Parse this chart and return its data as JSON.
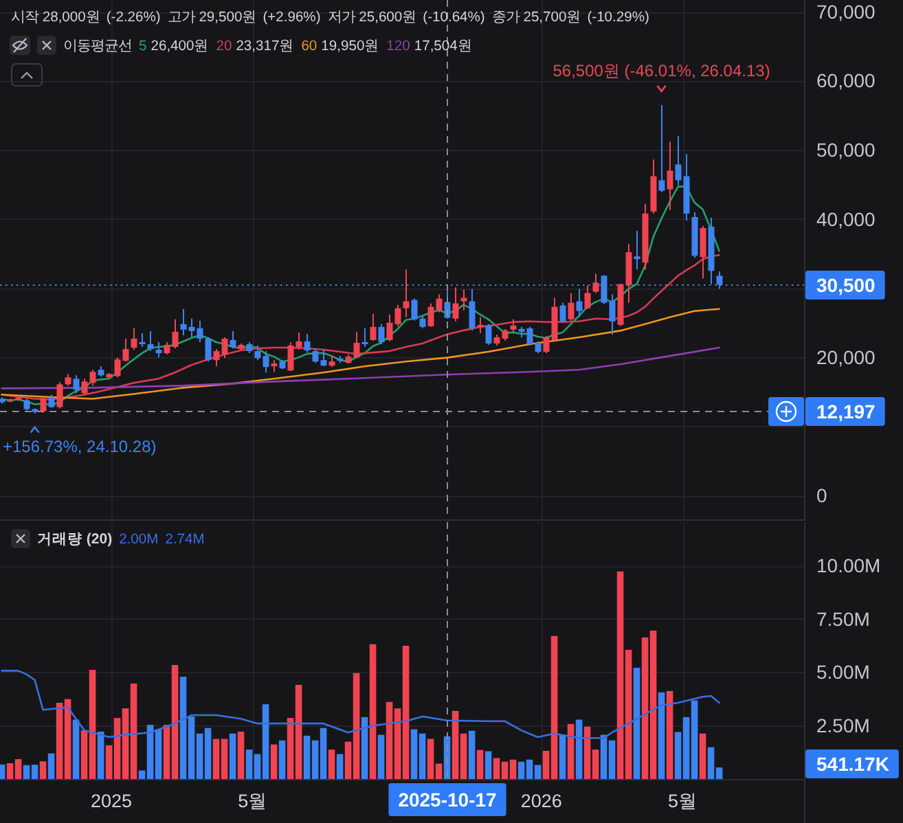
{
  "chart_data": [
    {
      "type": "candlestick",
      "x": [
        "2024-09-30",
        "2024-10-07",
        "2024-10-14",
        "2024-10-21",
        "2024-10-28",
        "2024-11-04",
        "2024-11-11",
        "2024-11-18",
        "2024-11-25",
        "2024-12-02",
        "2024-12-09",
        "2024-12-16",
        "2024-12-23",
        "2024-12-30",
        "2025-01-06",
        "2025-01-13",
        "2025-01-20",
        "2025-01-27",
        "2025-02-03",
        "2025-02-10",
        "2025-02-17",
        "2025-02-24",
        "2025-03-03",
        "2025-03-10",
        "2025-03-17",
        "2025-03-24",
        "2025-03-31",
        "2025-04-07",
        "2025-04-14",
        "2025-04-21",
        "2025-04-28",
        "2025-05-05",
        "2025-05-12",
        "2025-05-19",
        "2025-05-26",
        "2025-06-02",
        "2025-06-09",
        "2025-06-16",
        "2025-06-23",
        "2025-06-30",
        "2025-07-07",
        "2025-07-14",
        "2025-07-21",
        "2025-07-28",
        "2025-08-04",
        "2025-08-11",
        "2025-08-18",
        "2025-08-25",
        "2025-09-01",
        "2025-09-08",
        "2025-09-15",
        "2025-09-22",
        "2025-09-29",
        "2025-10-06",
        "2025-10-13",
        "2025-10-20",
        "2025-10-27",
        "2025-11-03",
        "2025-11-10",
        "2025-11-17",
        "2025-11-24",
        "2025-12-01",
        "2025-12-08",
        "2025-12-15",
        "2025-12-22",
        "2025-12-29",
        "2026-01-05",
        "2026-01-12",
        "2026-01-19",
        "2026-01-26",
        "2026-02-02",
        "2026-02-09",
        "2026-02-16",
        "2026-02-23",
        "2026-03-02",
        "2026-03-09",
        "2026-03-16",
        "2026-03-23",
        "2026-03-30",
        "2026-04-06",
        "2026-04-13",
        "2026-04-20",
        "2026-04-27",
        "2026-05-04",
        "2026-05-11",
        "2026-05-18",
        "2026-05-25",
        "2026-06-01"
      ],
      "ohlc": [
        [
          14000,
          14200,
          13300,
          13500
        ],
        [
          13600,
          14000,
          13500,
          13800
        ],
        [
          13800,
          14400,
          13700,
          14200
        ],
        [
          13800,
          14000,
          12300,
          12500
        ],
        [
          12500,
          12600,
          11880,
          12100
        ],
        [
          12200,
          14300,
          12000,
          14100
        ],
        [
          14200,
          14600,
          12700,
          12800
        ],
        [
          12800,
          16400,
          12600,
          16100
        ],
        [
          16100,
          17600,
          15900,
          17100
        ],
        [
          16900,
          17400,
          14800,
          15300
        ],
        [
          14800,
          16900,
          14500,
          16500
        ],
        [
          16300,
          18200,
          15900,
          17900
        ],
        [
          18200,
          18700,
          17200,
          17400
        ],
        [
          17100,
          17700,
          17000,
          17600
        ],
        [
          17300,
          20000,
          17100,
          19700
        ],
        [
          19500,
          22700,
          19400,
          21200
        ],
        [
          21400,
          24200,
          21100,
          22700
        ],
        [
          22200,
          23500,
          21500,
          21900
        ],
        [
          21900,
          23800,
          20900,
          21200
        ],
        [
          21100,
          22200,
          20000,
          20600
        ],
        [
          20600,
          22200,
          20400,
          21800
        ],
        [
          21500,
          25500,
          21300,
          23700
        ],
        [
          24800,
          27000,
          23200,
          24000
        ],
        [
          24400,
          25600,
          22900,
          23800
        ],
        [
          24200,
          25300,
          22200,
          22700
        ],
        [
          22700,
          22900,
          19400,
          19600
        ],
        [
          19600,
          21200,
          18700,
          20900
        ],
        [
          20400,
          22900,
          19900,
          22700
        ],
        [
          22500,
          23800,
          21300,
          21500
        ],
        [
          21200,
          22000,
          21100,
          21800
        ],
        [
          21900,
          22200,
          20600,
          20900
        ],
        [
          20900,
          21700,
          19600,
          19900
        ],
        [
          20200,
          20900,
          17800,
          18600
        ],
        [
          18700,
          19600,
          17900,
          19100
        ],
        [
          19400,
          19600,
          18300,
          18400
        ],
        [
          18100,
          22200,
          18000,
          21700
        ],
        [
          21500,
          23600,
          21100,
          22300
        ],
        [
          22300,
          23400,
          20700,
          21000
        ],
        [
          20900,
          21300,
          19200,
          19400
        ],
        [
          19600,
          21200,
          18700,
          18800
        ],
        [
          18800,
          20200,
          18600,
          19400
        ],
        [
          19800,
          20200,
          19200,
          19500
        ],
        [
          19200,
          20400,
          19100,
          20100
        ],
        [
          20000,
          23700,
          19900,
          22100
        ],
        [
          22200,
          24200,
          21500,
          21900
        ],
        [
          22500,
          26300,
          22400,
          24400
        ],
        [
          24400,
          24800,
          21900,
          22200
        ],
        [
          22500,
          26200,
          22300,
          25000
        ],
        [
          24800,
          27600,
          24500,
          27100
        ],
        [
          27100,
          32700,
          25800,
          28100
        ],
        [
          28300,
          28500,
          25300,
          25500
        ],
        [
          25600,
          26100,
          24200,
          24400
        ],
        [
          24500,
          27800,
          24400,
          27300
        ],
        [
          26800,
          29100,
          26500,
          28500
        ],
        [
          28000,
          29500,
          25600,
          25700
        ],
        [
          25600,
          30100,
          25200,
          27800
        ],
        [
          28100,
          29800,
          26800,
          28600
        ],
        [
          28100,
          29900,
          23900,
          24200
        ],
        [
          24400,
          25800,
          23500,
          24700
        ],
        [
          24600,
          24800,
          21800,
          22000
        ],
        [
          22000,
          23300,
          21700,
          22900
        ],
        [
          22700,
          24100,
          22400,
          23900
        ],
        [
          24000,
          25500,
          23700,
          24600
        ],
        [
          24100,
          24400,
          22900,
          23700
        ],
        [
          24200,
          24400,
          21700,
          21900
        ],
        [
          22100,
          22300,
          20600,
          20800
        ],
        [
          20800,
          23100,
          20600,
          22900
        ],
        [
          22500,
          28600,
          22400,
          27300
        ],
        [
          27500,
          27900,
          25000,
          25200
        ],
        [
          25500,
          29300,
          25300,
          27900
        ],
        [
          28100,
          29900,
          25800,
          26700
        ],
        [
          27100,
          30400,
          27000,
          29300
        ],
        [
          29500,
          32100,
          29300,
          30800
        ],
        [
          31800,
          31900,
          27700,
          27900
        ],
        [
          28100,
          29100,
          23300,
          25200
        ],
        [
          24700,
          30600,
          24500,
          30600
        ],
        [
          30400,
          36400,
          27900,
          35200
        ],
        [
          34600,
          38300,
          32700,
          34200
        ],
        [
          33700,
          42200,
          32700,
          40800
        ],
        [
          41100,
          48600,
          40800,
          46200
        ],
        [
          45600,
          56500,
          43900,
          44100
        ],
        [
          44300,
          51200,
          41300,
          47000
        ],
        [
          47900,
          52000,
          44900,
          45600
        ],
        [
          46200,
          49400,
          39800,
          40800
        ],
        [
          40300,
          41000,
          34400,
          34700
        ],
        [
          34500,
          39000,
          31400,
          38700
        ],
        [
          38900,
          40200,
          30600,
          32500
        ],
        [
          31800,
          32400,
          29900,
          30500
        ]
      ],
      "colors": [
        "#3d84f0",
        "#f04452",
        "#f04452",
        "#3d84f0",
        "#3d84f0",
        "#f04452",
        "#3d84f0",
        "#f04452",
        "#f04452",
        "#3d84f0",
        "#f04452",
        "#f04452",
        "#3d84f0",
        "#f04452",
        "#f04452",
        "#f04452",
        "#f04452",
        "#3d84f0",
        "#3d84f0",
        "#3d84f0",
        "#f04452",
        "#f04452",
        "#3d84f0",
        "#3d84f0",
        "#3d84f0",
        "#3d84f0",
        "#f04452",
        "#f04452",
        "#3d84f0",
        "#f04452",
        "#3d84f0",
        "#3d84f0",
        "#3d84f0",
        "#f04452",
        "#3d84f0",
        "#f04452",
        "#f04452",
        "#3d84f0",
        "#3d84f0",
        "#3d84f0",
        "#f04452",
        "#3d84f0",
        "#f04452",
        "#f04452",
        "#3d84f0",
        "#f04452",
        "#3d84f0",
        "#f04452",
        "#f04452",
        "#f04452",
        "#3d84f0",
        "#3d84f0",
        "#f04452",
        "#f04452",
        "#3d84f0",
        "#f04452",
        "#f04452",
        "#3d84f0",
        "#f04452",
        "#3d84f0",
        "#f04452",
        "#f04452",
        "#f04452",
        "#3d84f0",
        "#3d84f0",
        "#3d84f0",
        "#f04452",
        "#f04452",
        "#3d84f0",
        "#f04452",
        "#3d84f0",
        "#f04452",
        "#f04452",
        "#3d84f0",
        "#3d84f0",
        "#f04452",
        "#f04452",
        "#3d84f0",
        "#f04452",
        "#f04452",
        "#3d84f0",
        "#f04452",
        "#3d84f0",
        "#3d84f0",
        "#3d84f0",
        "#f04452",
        "#3d84f0",
        "#3d84f0"
      ],
      "series": [
        {
          "name": "5",
          "type": "line",
          "color": "#22a06b",
          "values": [
            13900,
            13800,
            13900,
            13600,
            13200,
            13300,
            13100,
            13500,
            14400,
            15100,
            15600,
            16600,
            16800,
            16900,
            17800,
            18800,
            19700,
            20600,
            21300,
            21500,
            21600,
            21800,
            22300,
            22800,
            23200,
            22800,
            22200,
            21900,
            21500,
            21300,
            21600,
            21400,
            20500,
            20100,
            19400,
            19600,
            20000,
            20500,
            20600,
            20600,
            20200,
            19600,
            19400,
            20000,
            20600,
            21600,
            22100,
            23100,
            24100,
            25400,
            25600,
            26000,
            26500,
            26800,
            26400,
            26700,
            27600,
            27000,
            26200,
            25500,
            24500,
            23500,
            23600,
            23400,
            23400,
            23000,
            22800,
            23300,
            23600,
            24800,
            26000,
            27300,
            28000,
            28500,
            28000,
            28800,
            29900,
            30600,
            33200,
            37400,
            40100,
            42500,
            44700,
            44700,
            42400,
            41400,
            38500,
            35400
          ]
        },
        {
          "name": "20",
          "type": "line",
          "color": "#d83a52",
          "x": [
            "2024-09-30",
            "2024-10-14",
            "2024-10-28",
            "2024-11-11",
            "2024-11-25",
            "2024-12-09",
            "2024-12-23",
            "2025-01-06",
            "2025-01-20",
            "2025-02-03",
            "2025-02-10",
            "2025-02-24",
            "2025-03-10",
            "2025-03-24",
            "2025-04-07",
            "2025-04-21",
            "2025-05-05",
            "2025-05-19",
            "2025-06-02",
            "2025-06-16",
            "2025-06-30",
            "2025-07-14",
            "2025-07-28",
            "2025-08-11",
            "2025-08-25",
            "2025-09-08",
            "2025-09-22",
            "2025-10-06",
            "2025-10-13",
            "2025-10-27",
            "2025-11-10",
            "2025-11-24",
            "2025-12-08",
            "2025-12-22",
            "2026-01-05",
            "2026-01-19",
            "2026-02-02",
            "2026-02-16",
            "2026-03-02",
            "2026-03-09",
            "2026-03-16",
            "2026-03-23",
            "2026-03-30",
            "2026-04-06",
            "2026-04-13",
            "2026-04-20",
            "2026-04-27",
            "2026-05-04",
            "2026-05-11",
            "2026-05-18",
            "2026-05-25",
            "2026-06-01"
          ],
          "values": [
            14600,
            14300,
            14000,
            13900,
            14200,
            14600,
            15100,
            15700,
            16300,
            16700,
            16900,
            17800,
            18900,
            19700,
            20400,
            21000,
            21300,
            21400,
            21400,
            21300,
            21100,
            20800,
            20500,
            20700,
            20900,
            21500,
            22000,
            22900,
            23317,
            23900,
            24400,
            24700,
            25100,
            25200,
            25100,
            25100,
            25200,
            25600,
            25500,
            25700,
            26000,
            26500,
            27300,
            28500,
            29600,
            30700,
            31800,
            32600,
            33300,
            34200,
            34600,
            34800
          ]
        },
        {
          "name": "60",
          "type": "line",
          "color": "#f0951f",
          "x": [
            "2024-09-30",
            "2024-11-04",
            "2024-12-16",
            "2025-01-20",
            "2025-03-03",
            "2025-04-14",
            "2025-05-19",
            "2025-06-30",
            "2025-08-04",
            "2025-09-08",
            "2025-10-13",
            "2025-11-17",
            "2025-12-22",
            "2026-02-02",
            "2026-03-09",
            "2026-03-30",
            "2026-04-20",
            "2026-05-11",
            "2026-06-01"
          ],
          "values": [
            14600,
            14300,
            14000,
            14700,
            15600,
            16200,
            16900,
            17800,
            18700,
            19400,
            19950,
            20800,
            21900,
            22900,
            23850,
            24800,
            25800,
            26700,
            27000
          ]
        },
        {
          "name": "120",
          "type": "line",
          "color": "#8e3fb0",
          "x": [
            "2024-09-30",
            "2024-12-16",
            "2025-03-03",
            "2025-05-19",
            "2025-08-04",
            "2025-10-13",
            "2025-12-22",
            "2026-02-02",
            "2026-03-09",
            "2026-04-20",
            "2026-06-01"
          ],
          "values": [
            15500,
            15600,
            15900,
            16500,
            17000,
            17504,
            17900,
            18200,
            19000,
            20200,
            21400
          ]
        }
      ],
      "xlim": [
        "2024-09-28T12:00",
        "2026-08-12"
      ],
      "xticks": [
        {
          "value": "2025",
          "label": null
        },
        {
          "value": "2025-05",
          "label": null
        },
        {
          "value": "2026",
          "label": null
        },
        {
          "value": "2026-05",
          "label": null
        }
      ],
      "ylim": [
        -3440,
        71690
      ],
      "yticks": [
        0,
        {
          "value": 10000,
          "label": null
        },
        {
          "value": 20000,
          "label": "20,000"
        },
        {
          "value": 30000,
          "label": null
        },
        {
          "value": 40000,
          "label": "40,000"
        },
        {
          "value": 50000,
          "label": "50,000"
        },
        {
          "value": 60000,
          "label": "60,000"
        },
        {
          "value": 70000,
          "label": "70,000"
        }
      ],
      "tick_labels": "y",
      "grid": true,
      "legend": "top left",
      "legend_title": "이동평균선",
      "annotations": [
        "시작 28,000원",
        "(-2.26%)",
        "고가 29,500원",
        "(+2.96%)",
        "저가 25,600원",
        "(-10.64%)",
        "종가 25,700원",
        "(-10.29%)",
        "30,500",
        "12,197",
        "26,400원",
        "23,317원",
        "19,950원",
        "17,504원",
        {
          "text": "56,500원 (-46.01%, 26.04.13)",
          "x": "2026-04-13",
          "y": 56500
        },
        {
          "text": "+156.73%, 24.10.28)",
          "x": "2024-10-28",
          "y": 11880
        }
      ],
      "ref_lines": [
        {
          "axis": "y",
          "value": 30500,
          "color": "#3d84f0",
          "line_style": "dotted"
        },
        {
          "axis": "y",
          "value": 12197,
          "color": "#8a8d96",
          "line_style": "dashed"
        },
        {
          "axis": "x",
          "value": "2025-10-13",
          "color": "#8a8d96",
          "line_style": "dashed"
        }
      ]
    },
    {
      "type": "bar",
      "title": "거래량 (20)",
      "x": [
        "2024-09-30",
        "2024-10-07",
        "2024-10-14",
        "2024-10-21",
        "2024-10-28",
        "2024-11-04",
        "2024-11-11",
        "2024-11-18",
        "2024-11-25",
        "2024-12-02",
        "2024-12-09",
        "2024-12-16",
        "2024-12-23",
        "2024-12-30",
        "2025-01-06",
        "2025-01-13",
        "2025-01-20",
        "2025-01-27",
        "2025-02-03",
        "2025-02-10",
        "2025-02-17",
        "2025-02-24",
        "2025-03-03",
        "2025-03-10",
        "2025-03-17",
        "2025-03-24",
        "2025-03-31",
        "2025-04-07",
        "2025-04-14",
        "2025-04-21",
        "2025-04-28",
        "2025-05-05",
        "2025-05-12",
        "2025-05-19",
        "2025-05-26",
        "2025-06-02",
        "2025-06-09",
        "2025-06-16",
        "2025-06-23",
        "2025-06-30",
        "2025-07-07",
        "2025-07-14",
        "2025-07-21",
        "2025-07-28",
        "2025-08-04",
        "2025-08-11",
        "2025-08-18",
        "2025-08-25",
        "2025-09-01",
        "2025-09-08",
        "2025-09-15",
        "2025-09-22",
        "2025-09-29",
        "2025-10-06",
        "2025-10-13",
        "2025-10-20",
        "2025-10-27",
        "2025-11-03",
        "2025-11-10",
        "2025-11-17",
        "2025-11-24",
        "2025-12-01",
        "2025-12-08",
        "2025-12-15",
        "2025-12-22",
        "2025-12-29",
        "2026-01-05",
        "2026-01-12",
        "2026-01-19",
        "2026-01-26",
        "2026-02-02",
        "2026-02-09",
        "2026-02-16",
        "2026-02-23",
        "2026-03-02",
        "2026-03-09",
        "2026-03-16",
        "2026-03-23",
        "2026-03-30",
        "2026-04-06",
        "2026-04-13",
        "2026-04-20",
        "2026-04-27",
        "2026-05-04",
        "2026-05-11",
        "2026-05-18",
        "2026-05-25",
        "2026-06-01"
      ],
      "series": [
        {
          "type": "bar",
          "values": [
            0.68,
            0.74,
            0.93,
            0.65,
            0.67,
            0.83,
            1.2,
            3.57,
            3.74,
            2.78,
            2.28,
            5.11,
            2.22,
            1.58,
            2.86,
            3.31,
            4.47,
            0.4,
            2.54,
            2.33,
            2.54,
            5.34,
            4.79,
            2.93,
            2.13,
            2.39,
            1.88,
            1.88,
            2.13,
            2.22,
            1.38,
            1.17,
            3.5,
            1.62,
            1.81,
            2.86,
            4.41,
            2.03,
            1.81,
            2.39,
            1.38,
            1.17,
            1.75,
            4.96,
            2.9,
            6.31,
            2.07,
            3.61,
            3.31,
            6.24,
            2.33,
            2.13,
            1.88,
            0.72,
            2.0,
            3.19,
            2.13,
            2.26,
            1.36,
            1.3,
            0.98,
            0.81,
            0.91,
            0.81,
            0.91,
            0.66,
            1.32,
            6.7,
            2.07,
            2.58,
            2.78,
            2.45,
            1.38,
            2.07,
            1.81,
            9.72,
            6.05,
            5.21,
            6.63,
            6.95,
            4.06,
            4.12,
            2.2,
            2.9,
            3.68,
            2.13,
            1.49,
            0.54117
          ],
          "colors": [
            "#3d84f0",
            "#f04452",
            "#f04452",
            "#3d84f0",
            "#3d84f0",
            "#f04452",
            "#3d84f0",
            "#f04452",
            "#f04452",
            "#3d84f0",
            "#f04452",
            "#f04452",
            "#3d84f0",
            "#f04452",
            "#f04452",
            "#f04452",
            "#f04452",
            "#3d84f0",
            "#3d84f0",
            "#3d84f0",
            "#f04452",
            "#f04452",
            "#3d84f0",
            "#3d84f0",
            "#3d84f0",
            "#3d84f0",
            "#f04452",
            "#f04452",
            "#3d84f0",
            "#f04452",
            "#3d84f0",
            "#3d84f0",
            "#3d84f0",
            "#f04452",
            "#3d84f0",
            "#f04452",
            "#f04452",
            "#3d84f0",
            "#3d84f0",
            "#3d84f0",
            "#f04452",
            "#3d84f0",
            "#f04452",
            "#f04452",
            "#3d84f0",
            "#f04452",
            "#3d84f0",
            "#f04452",
            "#f04452",
            "#f04452",
            "#3d84f0",
            "#3d84f0",
            "#f04452",
            "#f04452",
            "#3d84f0",
            "#f04452",
            "#f04452",
            "#3d84f0",
            "#f04452",
            "#3d84f0",
            "#f04452",
            "#f04452",
            "#f04452",
            "#3d84f0",
            "#3d84f0",
            "#3d84f0",
            "#f04452",
            "#f04452",
            "#3d84f0",
            "#f04452",
            "#3d84f0",
            "#f04452",
            "#f04452",
            "#3d84f0",
            "#3d84f0",
            "#f04452",
            "#f04452",
            "#3d84f0",
            "#f04452",
            "#f04452",
            "#3d84f0",
            "#f04452",
            "#3d84f0",
            "#3d84f0",
            "#3d84f0",
            "#f04452",
            "#3d84f0",
            "#3d84f0"
          ]
        },
        {
          "type": "line",
          "color": "#3a6fe0",
          "x": [
            "2024-09-30",
            "2024-10-14",
            "2024-10-21",
            "2024-10-28",
            "2024-11-04",
            "2024-11-25",
            "2024-12-09",
            "2024-12-30",
            "2025-01-13",
            "2025-02-03",
            "2025-02-24",
            "2025-03-10",
            "2025-03-31",
            "2025-04-21",
            "2025-05-05",
            "2025-06-30",
            "2025-07-21",
            "2025-08-11",
            "2025-09-08",
            "2025-09-22",
            "2025-10-13",
            "2025-11-17",
            "2025-12-01",
            "2025-12-15",
            "2025-12-29",
            "2026-01-12",
            "2026-02-02",
            "2026-02-23",
            "2026-03-02",
            "2026-03-16",
            "2026-04-13",
            "2026-04-27",
            "2026-05-18",
            "2026-05-25",
            "2026-06-01"
          ],
          "values": [
            5.07,
            5.07,
            4.9,
            4.64,
            3.24,
            3.36,
            2.28,
            1.96,
            2.07,
            2.18,
            2.6,
            2.99,
            2.99,
            2.82,
            2.6,
            2.6,
            2.18,
            2.5,
            2.71,
            2.93,
            2.74,
            2.71,
            2.71,
            2.28,
            1.96,
            2.13,
            1.92,
            1.92,
            2.18,
            2.6,
            3.46,
            3.57,
            3.85,
            3.89,
            3.57
          ]
        }
      ],
      "xlim": [
        "2024-09-28T12:00",
        "2026-08-12"
      ],
      "xticks": [
        {
          "value": "2025",
          "label": "2025"
        },
        {
          "value": "2025-05",
          "label": "5월"
        },
        {
          "value": "2026",
          "label": "2026"
        },
        {
          "value": "2026-05",
          "label": "5월"
        }
      ],
      "ylim": [
        0,
        12.03
      ],
      "yticks": [
        {
          "value": 2.5,
          "label": "2.50M"
        },
        {
          "value": 5,
          "label": "5.00M"
        },
        {
          "value": 7.5,
          "label": "7.50M"
        },
        {
          "value": 10,
          "label": "10.00M"
        }
      ],
      "grid": true,
      "annotations": [
        "2.00M",
        "2.74M",
        "541.17K"
      ],
      "ref_lines": [
        {
          "axis": "x",
          "value": "2025-10-13",
          "label": "2025-10-17",
          "color": "#8a8d96",
          "line_style": "dashed"
        }
      ]
    }
  ]
}
